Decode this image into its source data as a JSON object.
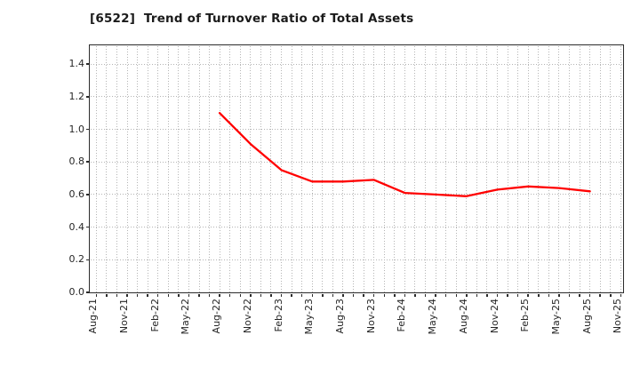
{
  "title": "[6522]  Trend of Turnover Ratio of Total Assets",
  "colors": {
    "line": "#ff0000",
    "axis": "#2b2b2b",
    "grid": "#b4b4b4",
    "text": "#262626",
    "background": "#ffffff"
  },
  "chart_data": {
    "type": "line",
    "title": "[6522]  Trend of Turnover Ratio of Total Assets",
    "legend": "none",
    "grid": {
      "style": "dotted",
      "vertical": "monthly",
      "horizontal_step": 0.2
    },
    "x_axis": {
      "tick_labels": [
        "Aug-21",
        "Nov-21",
        "Feb-22",
        "May-22",
        "Aug-22",
        "Nov-22",
        "Feb-23",
        "May-23",
        "Aug-23",
        "Nov-23",
        "Feb-24",
        "May-24",
        "Aug-24",
        "Nov-24",
        "Feb-25",
        "May-25",
        "Aug-25",
        "Nov-25"
      ],
      "months_span": 51,
      "tick_label_rotation_deg": 90
    },
    "y_axis": {
      "tick_labels": [
        "0.0",
        "0.2",
        "0.4",
        "0.6",
        "0.8",
        "1.0",
        "1.2",
        "1.4"
      ],
      "ticks": [
        0.0,
        0.2,
        0.4,
        0.6,
        0.8,
        1.0,
        1.2,
        1.4
      ],
      "lim": [
        0,
        1.51
      ]
    },
    "series": [
      {
        "name": "Turnover Ratio of Total Assets",
        "color": "#ff0000",
        "x": [
          "Aug-22",
          "Nov-22",
          "Feb-23",
          "May-23",
          "Aug-23",
          "Nov-23",
          "Feb-24",
          "May-24",
          "Aug-24",
          "Nov-24",
          "Feb-25",
          "May-25",
          "Aug-25"
        ],
        "values": [
          1.1,
          0.91,
          0.75,
          0.68,
          0.68,
          0.69,
          0.61,
          0.6,
          0.59,
          0.63,
          0.65,
          0.64,
          0.62
        ]
      }
    ]
  }
}
